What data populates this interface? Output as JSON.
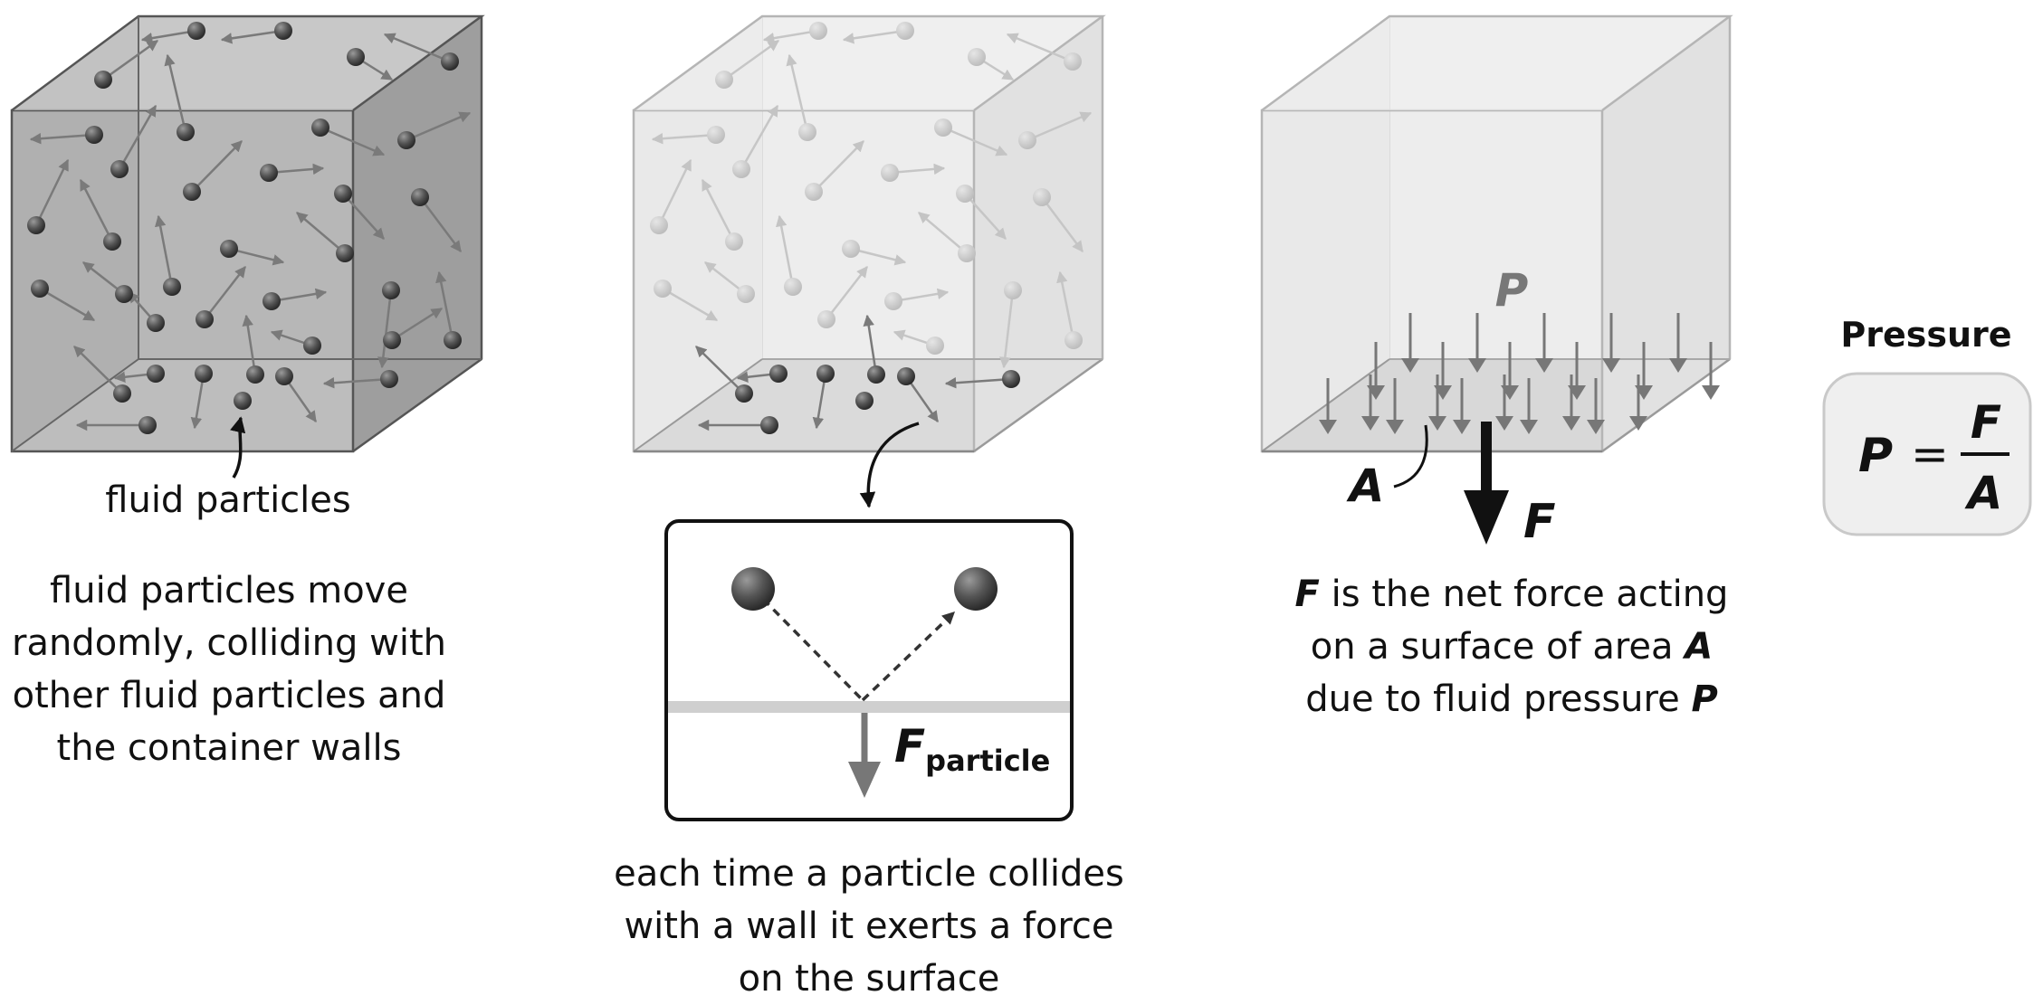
{
  "panel1": {
    "particle_label": "fluid particles",
    "description": [
      "fluid particles move",
      "randomly, colliding with",
      "other fluid particles and",
      "the container walls"
    ]
  },
  "panel2": {
    "force_symbol": "F",
    "force_subscript": "particle",
    "description": [
      "each time a particle collides",
      "with a wall it exerts a force",
      "on the surface"
    ]
  },
  "panel3": {
    "pressure_symbol": "P",
    "area_symbol": "A",
    "force_symbol": "F",
    "description": {
      "line1_symbol": "F",
      "line1_text": " is the net force acting",
      "line2_text": "on a surface of area ",
      "line2_symbol": "A",
      "line3_text": "due to fluid pressure ",
      "line3_symbol": "P"
    }
  },
  "formula": {
    "title": "Pressure",
    "lhs": "P",
    "equals": "=",
    "numerator": "F",
    "denominator": "A"
  },
  "colors": {
    "box_dark_face": "#a9a9a9",
    "box_light_face": "#e9e9e9",
    "arrow_gray": "#777777",
    "particle_dark": "#3a3a3a",
    "formula_bg": "#efefef"
  }
}
